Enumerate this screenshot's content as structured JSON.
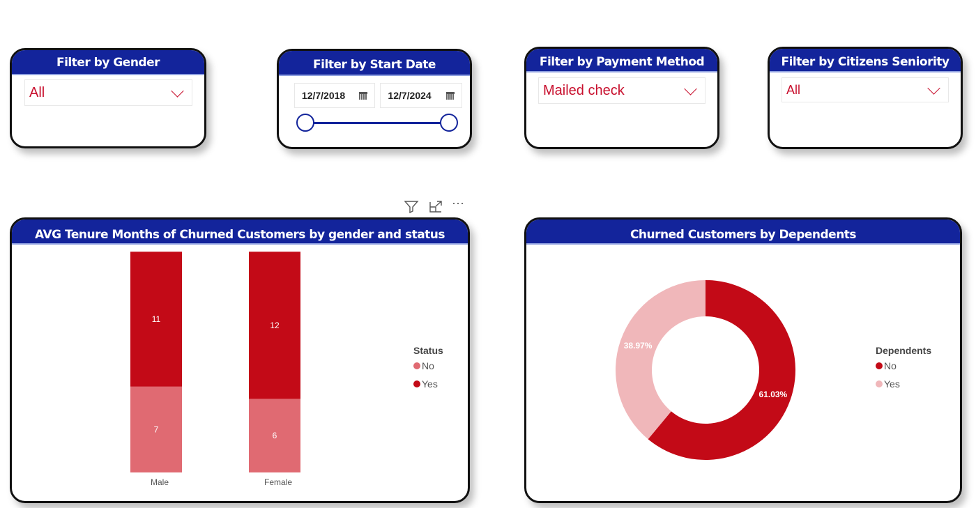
{
  "filters": {
    "gender": {
      "title": "Filter by Gender",
      "value": "All"
    },
    "start_date": {
      "title": "Filter by Start Date",
      "from": "12/7/2018",
      "to": "12/7/2024",
      "range_fraction": [
        0,
        1
      ]
    },
    "payment": {
      "title": "Filter by Payment Method",
      "value": "Mailed check"
    },
    "seniority": {
      "title": "Filter by Citizens Seniority",
      "value": "All"
    }
  },
  "colors": {
    "header": "#13249b",
    "yes": "#c30a17",
    "no": "#e06a72",
    "donut_no": "#c30a17",
    "donut_yes": "#f0b7ba"
  },
  "chart_data": [
    {
      "type": "bar",
      "stacked": true,
      "title": "AVG Tenure Months of Churned Customers by gender and status",
      "categories": [
        "Male",
        "Female"
      ],
      "series": [
        {
          "name": "No",
          "values": [
            7,
            6
          ]
        },
        {
          "name": "Yes",
          "values": [
            11,
            12
          ]
        }
      ],
      "legend_title": "Status",
      "legend": [
        "No",
        "Yes"
      ]
    },
    {
      "type": "pie",
      "donut": true,
      "title": "Churned Customers by Dependents",
      "labels": [
        "No",
        "Yes"
      ],
      "values": [
        61.03,
        38.97
      ],
      "data_labels": [
        "61.03%",
        "38.97%"
      ],
      "legend_title": "Dependents",
      "legend": [
        "No",
        "Yes"
      ]
    }
  ]
}
